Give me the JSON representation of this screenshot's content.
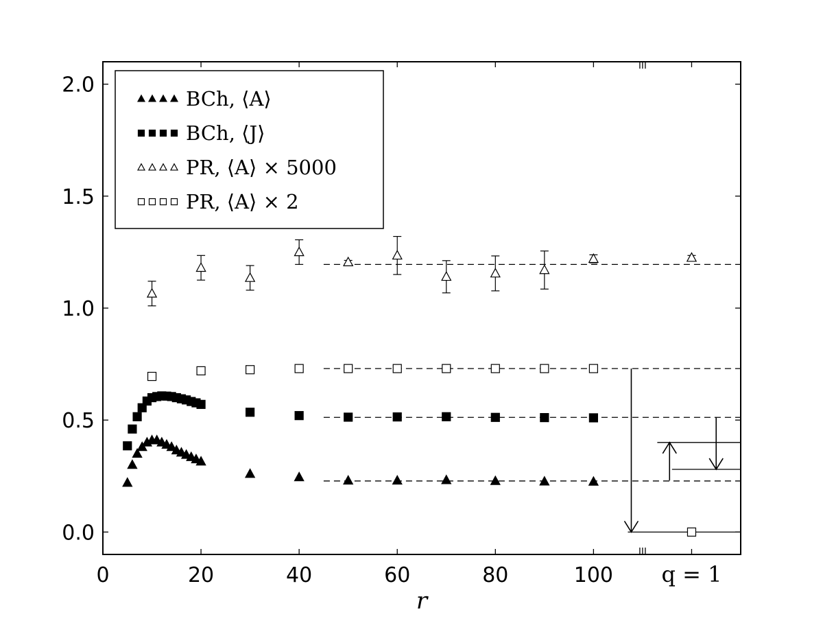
{
  "chart_data": {
    "type": "scatter",
    "xlabel": "r",
    "ylabel": "",
    "xlim": [
      0,
      130
    ],
    "ylim": [
      -0.1,
      2.1
    ],
    "xticks": [
      {
        "value": 0,
        "label": "0"
      },
      {
        "value": 20,
        "label": "20"
      },
      {
        "value": 40,
        "label": "40"
      },
      {
        "value": 60,
        "label": "60"
      },
      {
        "value": 80,
        "label": "80"
      },
      {
        "value": 100,
        "label": "100"
      }
    ],
    "yticks": [
      {
        "value": 0.0,
        "label": "0.0"
      },
      {
        "value": 0.5,
        "label": "0.5"
      },
      {
        "value": 1.0,
        "label": "1.0"
      },
      {
        "value": 1.5,
        "label": "1.5"
      },
      {
        "value": 2.0,
        "label": "2.0"
      }
    ],
    "extra_xtick": {
      "value": 120,
      "label": "q = 1"
    },
    "axis_break_at": 110,
    "grid": false,
    "legend_position": "top-left",
    "series": [
      {
        "name": "BCh, ⟨A⟩",
        "marker": "triangle",
        "filled": true,
        "x": [
          5,
          6,
          7,
          8,
          9,
          10,
          11,
          12,
          13,
          14,
          15,
          16,
          17,
          18,
          19,
          20,
          30,
          40,
          50,
          60,
          70,
          80,
          90,
          100
        ],
        "y": [
          0.22,
          0.3,
          0.35,
          0.38,
          0.4,
          0.41,
          0.41,
          0.4,
          0.39,
          0.38,
          0.365,
          0.355,
          0.345,
          0.335,
          0.325,
          0.315,
          0.26,
          0.245,
          0.23,
          0.23,
          0.232,
          0.228,
          0.226,
          0.225
        ]
      },
      {
        "name": "BCh, ⟨J⟩",
        "marker": "square",
        "filled": true,
        "x": [
          5,
          6,
          7,
          8,
          9,
          10,
          11,
          12,
          13,
          14,
          15,
          16,
          17,
          18,
          19,
          20,
          30,
          40,
          50,
          60,
          70,
          80,
          90,
          100
        ],
        "y": [
          0.385,
          0.46,
          0.515,
          0.555,
          0.585,
          0.6,
          0.605,
          0.608,
          0.607,
          0.605,
          0.6,
          0.595,
          0.59,
          0.583,
          0.577,
          0.57,
          0.535,
          0.52,
          0.513,
          0.514,
          0.515,
          0.512,
          0.511,
          0.51
        ]
      },
      {
        "name": "PR, ⟨A⟩ × 5000",
        "marker": "triangle",
        "filled": false,
        "x": [
          10,
          20,
          30,
          40,
          50,
          60,
          70,
          80,
          90,
          100,
          120
        ],
        "y": [
          1.065,
          1.18,
          1.135,
          1.25,
          1.205,
          1.235,
          1.14,
          1.155,
          1.17,
          1.22,
          1.225
        ],
        "yerr": [
          0.055,
          0.055,
          0.055,
          0.055,
          0.008,
          0.085,
          0.072,
          0.078,
          0.085,
          0.018,
          0.01
        ]
      },
      {
        "name": "PR, ⟨A⟩ × 2",
        "marker": "square",
        "filled": false,
        "x": [
          10,
          20,
          30,
          40,
          50,
          60,
          70,
          80,
          90,
          100,
          120
        ],
        "y": [
          0.695,
          0.72,
          0.725,
          0.73,
          0.73,
          0.73,
          0.73,
          0.73,
          0.73,
          0.73,
          0.0
        ]
      }
    ],
    "reference_lines": [
      {
        "y": 1.195,
        "x_start": 45
      },
      {
        "y": 0.73,
        "x_start": 45
      },
      {
        "y": 0.512,
        "x_start": 45
      },
      {
        "y": 0.228,
        "x_start": 45
      }
    ],
    "solid_lines": [
      {
        "y": 0.4,
        "x_start": 113,
        "x_end": 130
      },
      {
        "y": 0.28,
        "x_start": 116,
        "x_end": 130
      },
      {
        "y": 0.0,
        "x_start": 107,
        "x_end": 130
      }
    ],
    "arrows": [
      {
        "x": 107.7,
        "y_from": 0.73,
        "y_to": 0.0
      },
      {
        "x": 115.5,
        "y_from": 0.23,
        "y_to": 0.4
      },
      {
        "x": 125,
        "y_from": 0.512,
        "y_to": 0.28
      }
    ]
  }
}
